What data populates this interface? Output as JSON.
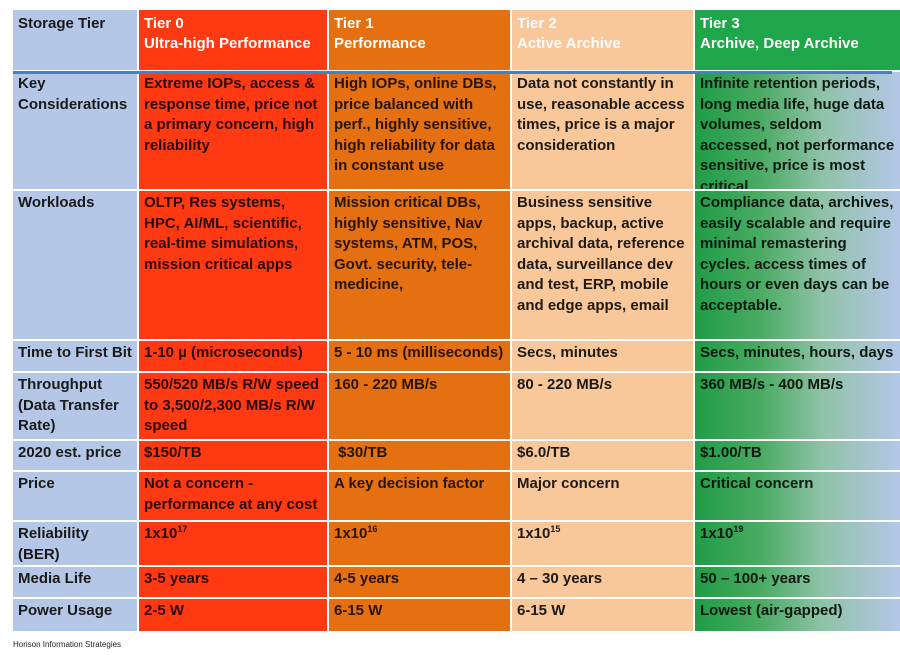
{
  "headers": [
    {
      "line1": "Storage Tier",
      "line2": ""
    },
    {
      "line1": "Tier 0",
      "line2": "Ultra-high Performance"
    },
    {
      "line1": "Tier 1",
      "line2": "Performance"
    },
    {
      "line1": "Tier 2",
      "line2": "Active Archive"
    },
    {
      "line1": "Tier 3",
      "line2": "Archive, Deep Archive"
    }
  ],
  "rows": [
    {
      "label": "Key Considerations",
      "cells": [
        "Extreme IOPs, access & response time, price not a primary concern, high reliability",
        "High IOPs, online DBs, price balanced with perf.,  highly sensitive, high reliability for data in constant use",
        "Data not constantly in use, reasonable access times, price is a major consideration",
        "Infinite retention periods, long media life, huge data volumes, seldom accessed, not performance sensitive, price is most critical"
      ]
    },
    {
      "label": "Workloads",
      "cells": [
        "OLTP, Res systems, HPC, AI/ML, scientific, real-time simulations, mission critical apps",
        "Mission critical DBs, highly sensitive, Nav systems, ATM, POS, Govt. security, tele-medicine,",
        "Business sensitive apps, backup, active archival data, reference data, surveillance dev and test, ERP, mobile and edge apps, email",
        "Compliance data, archives, easily scalable and require minimal remastering cycles. access times of hours or even days can be acceptable."
      ]
    },
    {
      "label": "Time to First Bit",
      "cells": [
        "1-10 µ (microseconds)",
        "5 - 10 ms (milliseconds)",
        "Secs, minutes",
        "Secs, minutes, hours, days"
      ]
    },
    {
      "label": "Throughput (Data Transfer Rate)",
      "cells": [
        "550/520 MB/s  R/W speed to 3,500/2,300 MB/s  R/W speed",
        "160 - 220 MB/s",
        "80 - 220 MB/s",
        "360 MB/s - 400 MB/s"
      ]
    },
    {
      "label": "2020 est. price",
      "cells": [
        "$150/TB",
        " $30/TB",
        "$6.0/TB",
        "$1.00/TB"
      ]
    },
    {
      "label": "Price",
      "cells": [
        "Not a concern - performance at any cost",
        "A key decision factor",
        "Major concern",
        "Critical concern"
      ]
    },
    {
      "label": "Reliability (BER)",
      "cells": [
        {
          "base": "1x10",
          "exp": "17"
        },
        {
          "base": "1x10",
          "exp": "16"
        },
        {
          "base": "1x10",
          "exp": "15"
        },
        {
          "base": "1x10",
          "exp": "19"
        }
      ]
    },
    {
      "label": "Media Life",
      "cells": [
        "3-5 years",
        "4-5 years",
        "4 – 30 years",
        "50 – 100+ years"
      ]
    },
    {
      "label": "Power Usage",
      "cells": [
        "2-5 W",
        "6-15 W",
        "6-15 W",
        "Lowest (air-gapped)"
      ]
    }
  ],
  "credit": "Horison Information Strategies"
}
